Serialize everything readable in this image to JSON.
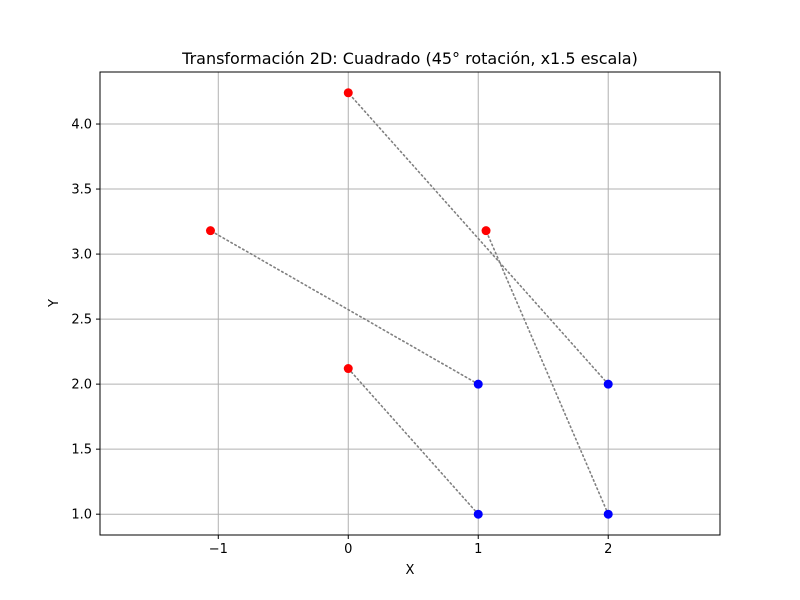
{
  "chart_data": {
    "type": "scatter",
    "title": "Transformación 2D: Cuadrado (45° rotación, x1.5 escala)",
    "xlabel": "X",
    "ylabel": "Y",
    "xlim": [
      -1.91,
      2.86
    ],
    "ylim": [
      0.84,
      4.4
    ],
    "x_ticks": [
      -1,
      0,
      1,
      2
    ],
    "y_ticks": [
      1.0,
      1.5,
      2.0,
      2.5,
      3.0,
      3.5,
      4.0
    ],
    "x_tick_labels": [
      "−1",
      "0",
      "1",
      "2"
    ],
    "y_tick_labels": [
      "1.0",
      "1.5",
      "2.0",
      "2.5",
      "3.0",
      "3.5",
      "4.0"
    ],
    "grid": true,
    "colors": {
      "original": "#0000ff",
      "transformed": "#ff0000",
      "connector": "#808080",
      "grid": "#b0b0b0"
    },
    "series": [
      {
        "points": [
          {
            "x": 1,
            "y": 1
          },
          {
            "x": 2,
            "y": 1
          },
          {
            "x": 2,
            "y": 2
          },
          {
            "x": 1,
            "y": 2
          }
        ]
      },
      {
        "points": [
          {
            "x": 0.0,
            "y": 2.12
          },
          {
            "x": 1.06,
            "y": 3.18
          },
          {
            "x": 0.0,
            "y": 4.24
          },
          {
            "x": -1.06,
            "y": 3.18
          }
        ]
      }
    ]
  }
}
